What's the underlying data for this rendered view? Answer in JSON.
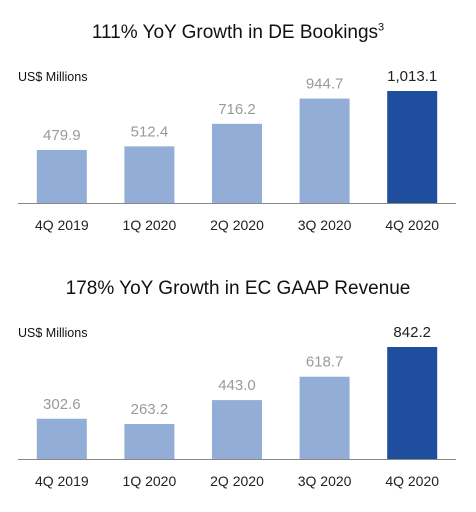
{
  "charts": [
    {
      "title": "111% YoY Growth in DE Bookings",
      "title_superscript": "3",
      "ylabel": "US$ Millions",
      "categories": [
        "4Q 2019",
        "1Q 2020",
        "2Q 2020",
        "3Q 2020",
        "4Q 2020"
      ],
      "values": [
        479.9,
        512.4,
        716.2,
        944.7,
        1013.1
      ],
      "value_labels": [
        "479.9",
        "512.4",
        "716.2",
        "944.7",
        "1,013.1"
      ]
    },
    {
      "title": "178% YoY Growth in EC GAAP Revenue",
      "title_superscript": "",
      "ylabel": "US$ Millions",
      "categories": [
        "4Q 2019",
        "1Q 2020",
        "2Q 2020",
        "3Q 2020",
        "4Q 2020"
      ],
      "values": [
        302.6,
        263.2,
        443.0,
        618.7,
        842.2
      ],
      "value_labels": [
        "302.6",
        "263.2",
        "443.0",
        "618.7",
        "842.2"
      ]
    }
  ],
  "colors": {
    "bar_light": "#93aed6",
    "bar_highlight": "#1f4e9f",
    "label_light": "#9a9a9a",
    "label_highlight": "#222222",
    "axis": "#888888"
  },
  "chart_data": [
    {
      "type": "bar",
      "title": "111% YoY Growth in DE Bookings",
      "ylabel": "US$ Millions",
      "xlabel": "",
      "categories": [
        "4Q 2019",
        "1Q 2020",
        "2Q 2020",
        "3Q 2020",
        "4Q 2020"
      ],
      "values": [
        479.9,
        512.4,
        716.2,
        944.7,
        1013.1
      ],
      "ylim": [
        0,
        1013.1
      ],
      "grid": false,
      "highlighted_category": "4Q 2020"
    },
    {
      "type": "bar",
      "title": "178% YoY Growth in EC GAAP Revenue",
      "ylabel": "US$ Millions",
      "xlabel": "",
      "categories": [
        "4Q 2019",
        "1Q 2020",
        "2Q 2020",
        "3Q 2020",
        "4Q 2020"
      ],
      "values": [
        302.6,
        263.2,
        443.0,
        618.7,
        842.2
      ],
      "ylim": [
        0,
        842.2
      ],
      "grid": false,
      "highlighted_category": "4Q 2020"
    }
  ]
}
